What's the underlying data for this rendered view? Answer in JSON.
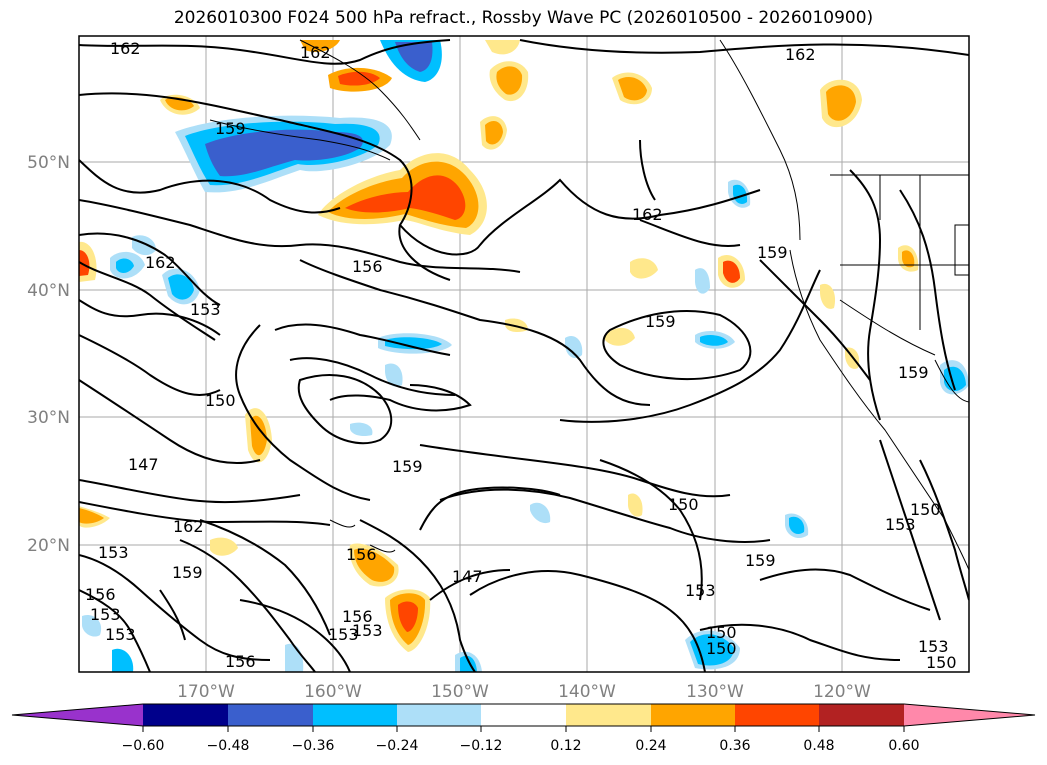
{
  "title": "2026010300 F024 500 hPa refract., Rossby Wave PC (2026010500 - 2026010900)",
  "lat_labels": [
    "50°N",
    "40°N",
    "30°N",
    "20°N"
  ],
  "lon_labels": [
    "170°W",
    "160°W",
    "150°W",
    "140°W",
    "130°W",
    "120°W"
  ],
  "colorbar": {
    "ticks": [
      "−0.60",
      "−0.48",
      "−0.36",
      "−0.24",
      "−0.12",
      "0.12",
      "0.24",
      "0.36",
      "0.48",
      "0.60"
    ],
    "colors": [
      "#9932CC",
      "#00008B",
      "#3A5FCD",
      "#00BFFF",
      "#ADDFF8",
      "#FFFFFF",
      "#FFE88C",
      "#FFA500",
      "#FF4500",
      "#B22222",
      "#FF88AA"
    ]
  },
  "contour_labels": [
    "162",
    "162",
    "162",
    "159",
    "162",
    "162",
    "153",
    "156",
    "159",
    "159",
    "159",
    "150",
    "147",
    "159",
    "162",
    "153",
    "159",
    "156",
    "150",
    "159",
    "153",
    "150",
    "147",
    "153",
    "156",
    "153",
    "156",
    "153",
    "150",
    "153",
    "150",
    "150",
    "156",
    "153",
    "153"
  ],
  "chart_data": {
    "type": "map",
    "region": "North Pacific",
    "field": "500 hPa refractivity contours with Rossby Wave PC shading",
    "lat_range": [
      10,
      60
    ],
    "lon_range": [
      -178,
      -108
    ],
    "gridlines": true,
    "colorbar_levels": [
      -0.6,
      -0.48,
      -0.36,
      -0.24,
      -0.12,
      0.12,
      0.24,
      0.36,
      0.48,
      0.6
    ],
    "colorbar_extend": "both",
    "contour_levels": [
      147,
      150,
      153,
      156,
      159,
      162
    ]
  }
}
